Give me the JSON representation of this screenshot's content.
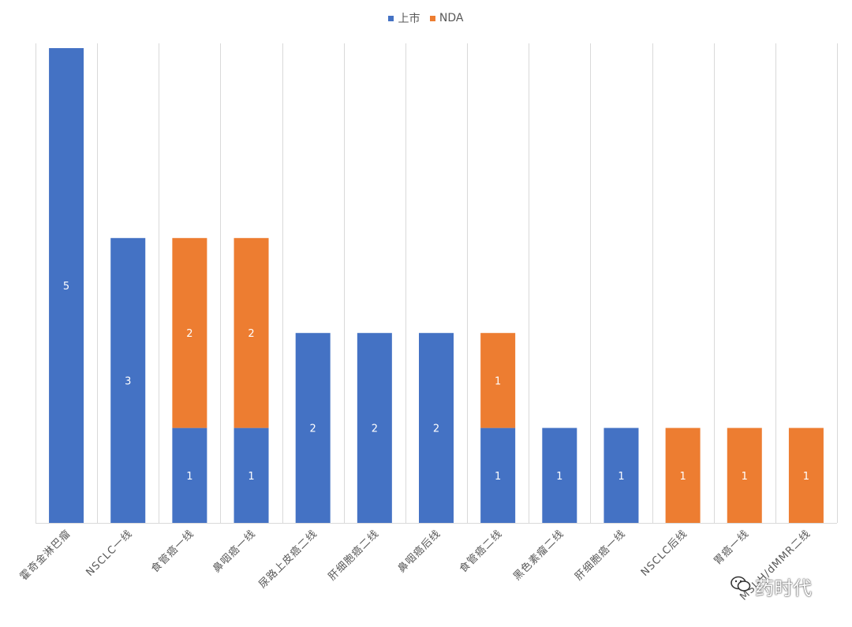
{
  "chart_data": {
    "type": "bar",
    "stacked": true,
    "categories": [
      "霍奇金淋巴瘤",
      "NSCLC一线",
      "食管癌一线",
      "鼻咽癌一线",
      "尿路上皮癌二线",
      "肝细胞癌二线",
      "鼻咽癌后线",
      "食管癌二线",
      "黑色素瘤二线",
      "肝细胞癌一线",
      "NSCLC后线",
      "胃癌一线",
      "MSI-H/dMMR二线"
    ],
    "series": [
      {
        "name": "上市",
        "color": "#4472C4",
        "values": [
          5,
          3,
          1,
          1,
          2,
          2,
          2,
          1,
          1,
          1,
          0,
          0,
          0
        ]
      },
      {
        "name": "NDA",
        "color": "#ED7D31",
        "values": [
          0,
          0,
          2,
          2,
          0,
          0,
          0,
          1,
          0,
          0,
          1,
          1,
          1
        ]
      }
    ],
    "ylim": [
      0,
      5.05
    ],
    "grid": "vertical",
    "legend": "top-center",
    "data_labels": true
  },
  "watermark": {
    "text": "药时代",
    "icon": "wechat-icon"
  }
}
